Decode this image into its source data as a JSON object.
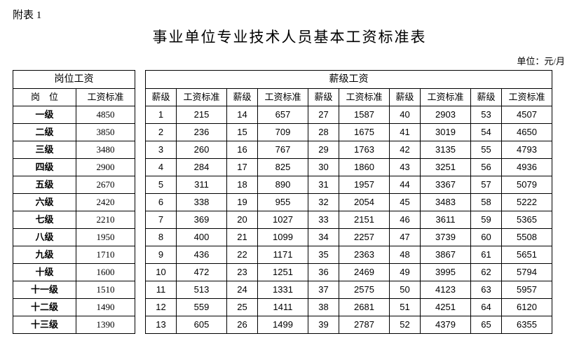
{
  "appendix_label": "附表 1",
  "title": "事业单位专业技术人员基本工资标准表",
  "unit_label": "单位：元/月",
  "left_table": {
    "group_header": "岗位工资",
    "col_rank_header": "岗　位",
    "col_std_header": "工资标准",
    "rows": [
      {
        "rank": "一级",
        "std": "4850"
      },
      {
        "rank": "二级",
        "std": "3850"
      },
      {
        "rank": "三级",
        "std": "3480"
      },
      {
        "rank": "四级",
        "std": "2900"
      },
      {
        "rank": "五级",
        "std": "2670"
      },
      {
        "rank": "六级",
        "std": "2420"
      },
      {
        "rank": "七级",
        "std": "2210"
      },
      {
        "rank": "八级",
        "std": "1950"
      },
      {
        "rank": "九级",
        "std": "1710"
      },
      {
        "rank": "十级",
        "std": "1600"
      },
      {
        "rank": "十一级",
        "std": "1510"
      },
      {
        "rank": "十二级",
        "std": "1490"
      },
      {
        "rank": "十三级",
        "std": "1390"
      }
    ]
  },
  "right_table": {
    "group_header": "薪级工资",
    "col_level_header": "薪级",
    "col_amount_header": "工资标准",
    "num_column_pairs": 5,
    "rows": [
      {
        "pairs": [
          [
            "1",
            "215"
          ],
          [
            "14",
            "657"
          ],
          [
            "27",
            "1587"
          ],
          [
            "40",
            "2903"
          ],
          [
            "53",
            "4507"
          ]
        ]
      },
      {
        "pairs": [
          [
            "2",
            "236"
          ],
          [
            "15",
            "709"
          ],
          [
            "28",
            "1675"
          ],
          [
            "41",
            "3019"
          ],
          [
            "54",
            "4650"
          ]
        ]
      },
      {
        "pairs": [
          [
            "3",
            "260"
          ],
          [
            "16",
            "767"
          ],
          [
            "29",
            "1763"
          ],
          [
            "42",
            "3135"
          ],
          [
            "55",
            "4793"
          ]
        ]
      },
      {
        "pairs": [
          [
            "4",
            "284"
          ],
          [
            "17",
            "825"
          ],
          [
            "30",
            "1860"
          ],
          [
            "43",
            "3251"
          ],
          [
            "56",
            "4936"
          ]
        ]
      },
      {
        "pairs": [
          [
            "5",
            "311"
          ],
          [
            "18",
            "890"
          ],
          [
            "31",
            "1957"
          ],
          [
            "44",
            "3367"
          ],
          [
            "57",
            "5079"
          ]
        ]
      },
      {
        "pairs": [
          [
            "6",
            "338"
          ],
          [
            "19",
            "955"
          ],
          [
            "32",
            "2054"
          ],
          [
            "45",
            "3483"
          ],
          [
            "58",
            "5222"
          ]
        ]
      },
      {
        "pairs": [
          [
            "7",
            "369"
          ],
          [
            "20",
            "1027"
          ],
          [
            "33",
            "2151"
          ],
          [
            "46",
            "3611"
          ],
          [
            "59",
            "5365"
          ]
        ]
      },
      {
        "pairs": [
          [
            "8",
            "400"
          ],
          [
            "21",
            "1099"
          ],
          [
            "34",
            "2257"
          ],
          [
            "47",
            "3739"
          ],
          [
            "60",
            "5508"
          ]
        ]
      },
      {
        "pairs": [
          [
            "9",
            "436"
          ],
          [
            "22",
            "1171"
          ],
          [
            "35",
            "2363"
          ],
          [
            "48",
            "3867"
          ],
          [
            "61",
            "5651"
          ]
        ]
      },
      {
        "pairs": [
          [
            "10",
            "472"
          ],
          [
            "23",
            "1251"
          ],
          [
            "36",
            "2469"
          ],
          [
            "49",
            "3995"
          ],
          [
            "62",
            "5794"
          ]
        ]
      },
      {
        "pairs": [
          [
            "11",
            "513"
          ],
          [
            "24",
            "1331"
          ],
          [
            "37",
            "2575"
          ],
          [
            "50",
            "4123"
          ],
          [
            "63",
            "5957"
          ]
        ]
      },
      {
        "pairs": [
          [
            "12",
            "559"
          ],
          [
            "25",
            "1411"
          ],
          [
            "38",
            "2681"
          ],
          [
            "51",
            "4251"
          ],
          [
            "64",
            "6120"
          ]
        ]
      },
      {
        "pairs": [
          [
            "13",
            "605"
          ],
          [
            "26",
            "1499"
          ],
          [
            "39",
            "2787"
          ],
          [
            "52",
            "4379"
          ],
          [
            "65",
            "6355"
          ]
        ]
      }
    ]
  },
  "colors": {
    "background": "#ffffff",
    "text": "#000000",
    "border": "#000000"
  }
}
